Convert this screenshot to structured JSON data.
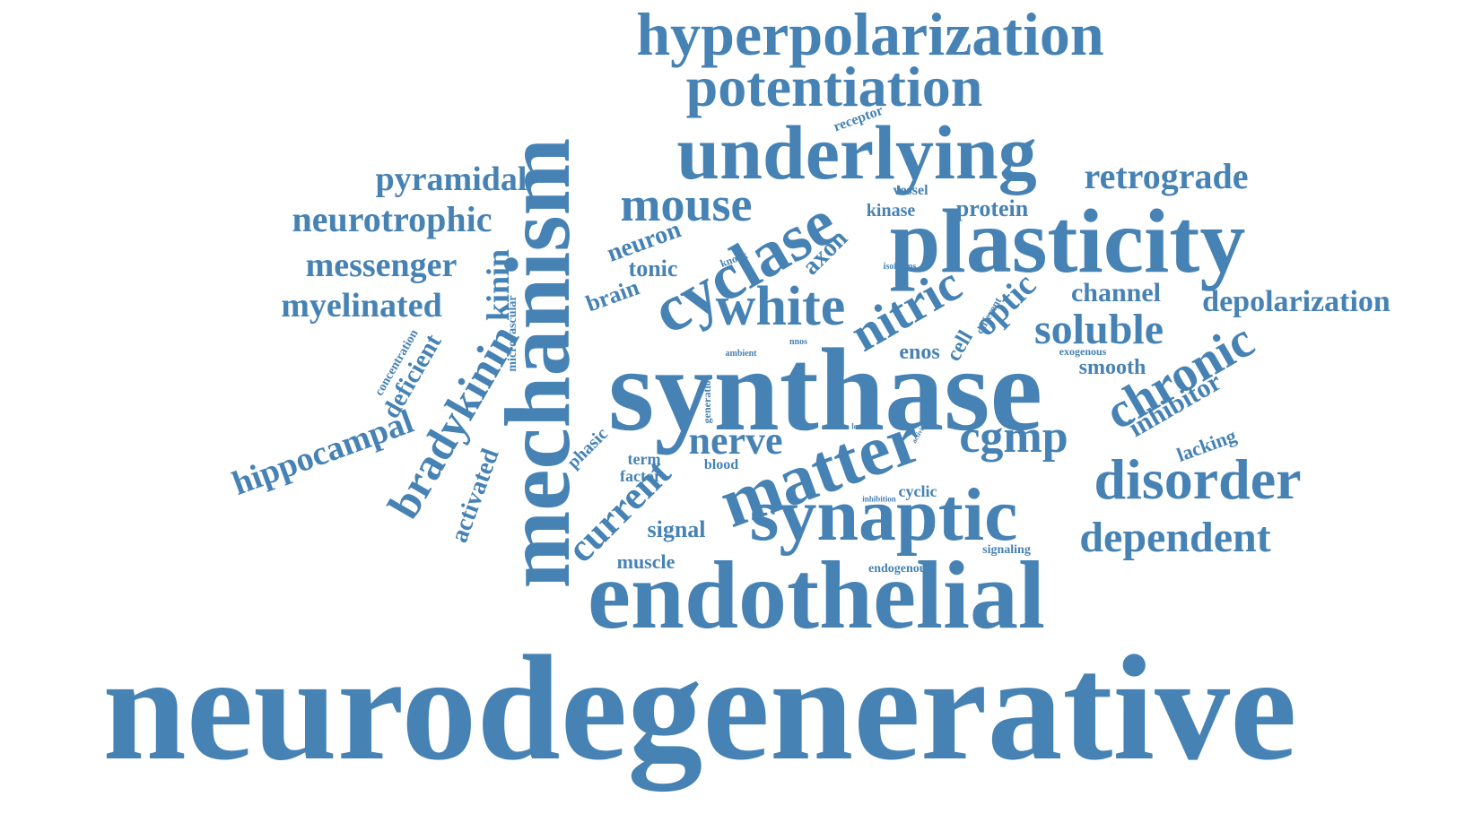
{
  "color": "#4682b4",
  "words": [
    "neurodegenerative",
    "endothelial",
    "synthase",
    "mechanism",
    "plasticity",
    "underlying",
    "synaptic",
    "matter",
    "hyperpolarization",
    "potentiation",
    "cyclase",
    "disorder",
    "white",
    "chronic",
    "nitric",
    "cgmp",
    "bradykinin",
    "dependent",
    "mouse",
    "retrograde",
    "neurotrophic",
    "current",
    "nerve",
    "soluble",
    "hippocampal",
    "pyramidal",
    "messenger",
    "myelinated",
    "depolarization",
    "inhibitor",
    "optic",
    "kinin",
    "channel",
    "protein",
    "neuron",
    "deficient",
    "activated",
    "axon",
    "signal",
    "muscle",
    "brain",
    "tonic",
    "enos",
    "cell",
    "smooth",
    "lacking",
    "kinase",
    "vessel",
    "receptor",
    "cyclic",
    "phasic",
    "term",
    "factor",
    "blood",
    "signaling",
    "endogenous",
    "concentration",
    "microvascular",
    "generation",
    "different",
    "exogenous",
    "knock",
    "isoforms",
    "nnos",
    "ambient",
    "inhibition",
    "level",
    "activity"
  ]
}
